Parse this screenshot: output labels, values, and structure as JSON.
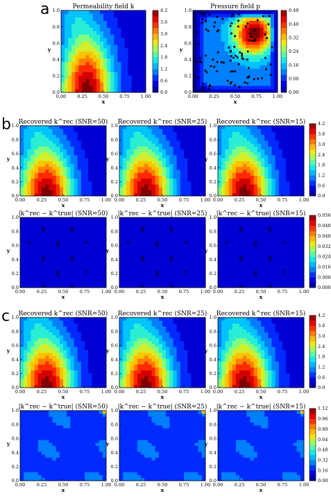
{
  "panels": {
    "a": {
      "letter": "a",
      "subplots": [
        {
          "title": "Permeability field k",
          "field": "k",
          "colorbar": "k_a"
        },
        {
          "title": "Pressure field p",
          "field": "p",
          "colorbar": "p_a",
          "scatter": true
        }
      ]
    },
    "b": {
      "letter": "b",
      "rows": [
        {
          "titles": [
            "Recovered k^rec (SNR=50)",
            "Recovered k^rec (SNR=25)",
            "Recovered k^rec (SNR=15)"
          ],
          "field": "k",
          "colorbar": "k_b"
        },
        {
          "titles": [
            "|k^rec − k^true| (SNR=50)",
            "|k^rec − k^true| (SNR=25)",
            "|k^rec − k^true| (SNR=15)"
          ],
          "field": "err_b",
          "colorbar": "err_b"
        }
      ]
    },
    "c": {
      "letter": "c",
      "rows": [
        {
          "titles": [
            "Recovered k^rec (SNR=50)",
            "Recovered k^rec (SNR=25)",
            "Recovered k^rec (SNR=15)"
          ],
          "field": "k",
          "colorbar": "k_c"
        },
        {
          "titles": [
            "|k^rec − k^true| (SNR=50)",
            "|k^rec − k^true| (SNR=25)",
            "|k^rec − k^true| (SNR=15)"
          ],
          "field": "err_c",
          "colorbar": "err_c"
        }
      ]
    }
  },
  "axes": {
    "xlabel": "x",
    "ylabel": "y",
    "xticks": [
      "0.00",
      "0.25",
      "0.50",
      "0.75",
      "1.00"
    ],
    "yticks": [
      "0.0",
      "0.2",
      "0.4",
      "0.6",
      "0.8",
      "1.0"
    ]
  },
  "colorbars": {
    "k_a": [
      "0.0",
      "0.6",
      "1.2",
      "1.8",
      "2.4",
      "3.0",
      "3.6",
      "4.2"
    ],
    "p_a": [
      "0.00",
      "0.08",
      "0.16",
      "0.24",
      "0.32",
      "0.40",
      "0.48"
    ],
    "k_b": [
      "0.0",
      "0.6",
      "1.2",
      "1.8",
      "2.4",
      "3.0",
      "3.6",
      "4.2"
    ],
    "err_b": [
      "0.000",
      "0.008",
      "0.016",
      "0.024",
      "0.032",
      "0.040",
      "0.048",
      "0.056"
    ],
    "k_c": [
      "0.0",
      "0.6",
      "1.2",
      "1.8",
      "2.4",
      "3.0",
      "3.6",
      "4.2"
    ],
    "err_c": [
      "0.00",
      "0.16",
      "0.32",
      "0.48",
      "0.64",
      "0.80",
      "0.96",
      "1.12"
    ]
  },
  "colors": {
    "colormap": [
      "#00007f",
      "#0000ff",
      "#007fff",
      "#00e5ff",
      "#7fff7f",
      "#ffe500",
      "#ff7f00",
      "#ff0000",
      "#7f0000"
    ],
    "scatter": "#000000"
  },
  "chart_data": [
    {
      "type": "heatmap",
      "title": "Permeability field k",
      "xlabel": "x",
      "ylabel": "y",
      "xlim": [
        0,
        1
      ],
      "ylim": [
        0,
        1
      ],
      "zlim": [
        0,
        4.2
      ],
      "peak": {
        "x": 0.3,
        "y": 0.0,
        "value": 4.2
      },
      "minimum": {
        "x": 0.95,
        "y": 1.0,
        "value": 0.2
      }
    },
    {
      "type": "heatmap",
      "title": "Pressure field p",
      "xlabel": "x",
      "ylabel": "y",
      "xlim": [
        0,
        1
      ],
      "ylim": [
        0,
        1
      ],
      "zlim": [
        0,
        0.48
      ],
      "peak": {
        "x": 0.72,
        "y": 0.72,
        "value": 0.48
      },
      "overlay": "scatter of ~100 observation points"
    },
    {
      "type": "heatmap",
      "title": "Recovered k^rec (SNR=50, 25, 15) — panel b",
      "zlim": [
        0,
        4.2
      ]
    },
    {
      "type": "heatmap",
      "title": "|k^rec − k^true| (SNR=50, 25, 15) — panel b",
      "zlim": [
        0,
        0.056
      ]
    },
    {
      "type": "heatmap",
      "title": "Recovered k^rec (SNR=50, 25, 15) — panel c",
      "zlim": [
        0,
        4.2
      ]
    },
    {
      "type": "heatmap",
      "title": "|k^rec − k^true| (SNR=50, 25, 15) — panel c",
      "zlim": [
        0,
        1.12
      ],
      "peak": {
        "x": 1.0,
        "y": 1.0,
        "value": 1.12
      }
    }
  ]
}
